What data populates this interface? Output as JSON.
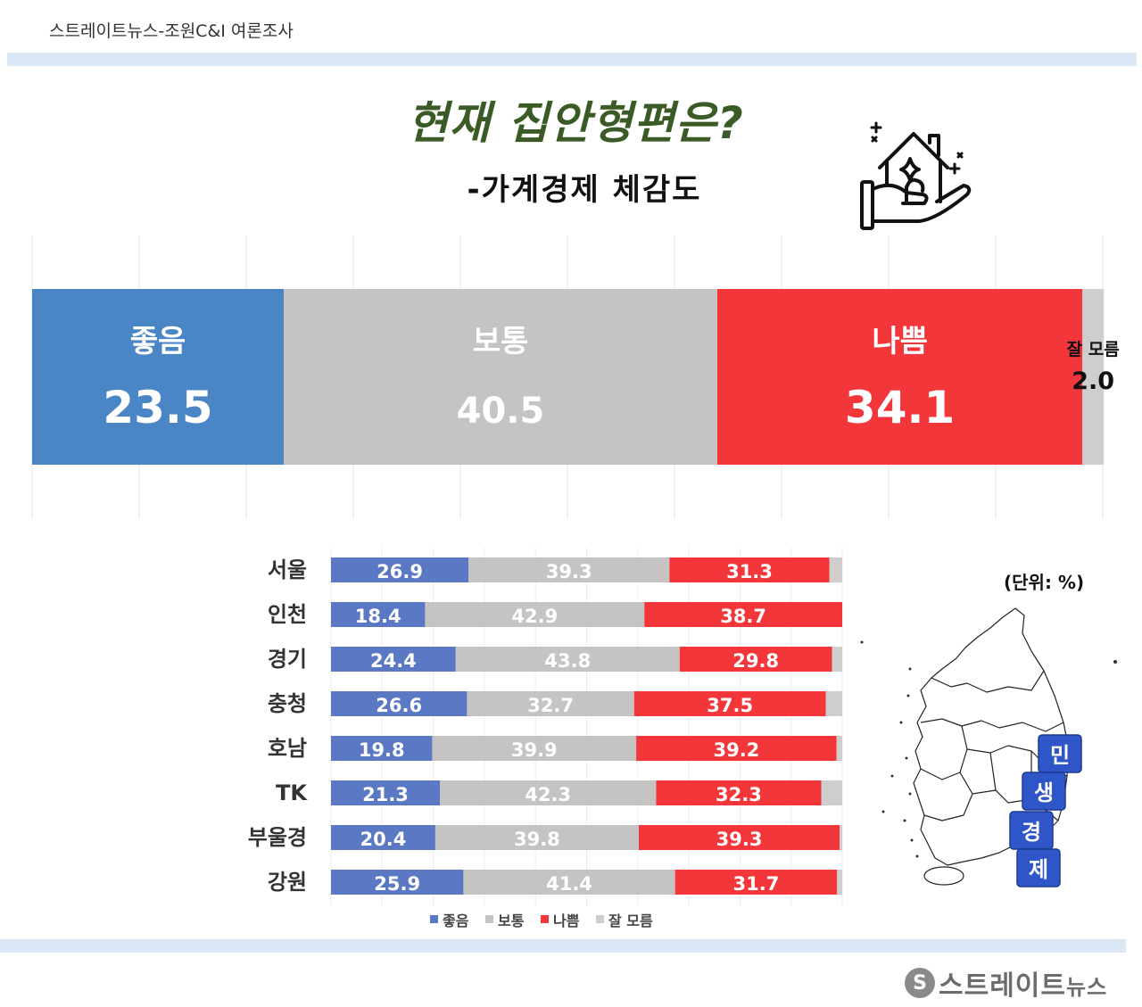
{
  "header": {
    "source": "스트레이트뉴스-조원C&I 여론조사"
  },
  "title": "현재 집안형편은?",
  "subtitle": "-가계경제 체감도",
  "unit_label": "(단위: %)",
  "logo": {
    "mark": "S",
    "main": "스트레이트",
    "small": "뉴스"
  },
  "colors": {
    "good": "#4a86c6",
    "normal": "#c6c3c3",
    "bad": "#f3363a",
    "unknown": "#d0cdcd",
    "region_good": "#5b78c4",
    "title": "#3b5b26",
    "band": "#dae8f5"
  },
  "icons": {
    "house": "house-in-hand-icon",
    "map": "korea-map-icon"
  },
  "map_blocks": [
    "민",
    "생",
    "경",
    "제"
  ],
  "chart_data": [
    {
      "type": "bar",
      "orientation": "horizontal",
      "stacked": true,
      "title": "현재 집안형편은?",
      "subtitle": "-가계경제 체감도",
      "categories": [
        "좋음",
        "보통",
        "나쁨",
        "잘 모름"
      ],
      "values": [
        23.5,
        40.5,
        34.1,
        2.0
      ],
      "colors": [
        "#4a86c6",
        "#c6c3c3",
        "#f3363a",
        "#d0cdcd"
      ],
      "xlim": [
        0,
        100
      ],
      "grid": true
    },
    {
      "type": "bar",
      "orientation": "horizontal",
      "stacked": true,
      "categories": [
        "서울",
        "인천",
        "경기",
        "충청",
        "호남",
        "TK",
        "부울경",
        "강원"
      ],
      "series": [
        {
          "name": "좋음",
          "values": [
            26.9,
            18.4,
            24.4,
            26.6,
            19.8,
            21.3,
            20.4,
            25.9
          ]
        },
        {
          "name": "보통",
          "values": [
            39.3,
            42.9,
            43.8,
            32.7,
            39.9,
            42.3,
            39.8,
            41.4
          ]
        },
        {
          "name": "나쁨",
          "values": [
            31.3,
            38.7,
            29.8,
            37.5,
            39.2,
            32.3,
            39.3,
            31.7
          ]
        },
        {
          "name": "잘 모름",
          "values": [
            2.5,
            0.0,
            2.0,
            3.2,
            1.1,
            4.1,
            0.5,
            1.0
          ]
        }
      ],
      "colors": [
        "#5b78c4",
        "#c6c3c3",
        "#f3363a",
        "#d0cdcd"
      ],
      "xlim": [
        0,
        100
      ],
      "legend": "bottom",
      "grid": true,
      "unit": "(단위: %)"
    }
  ]
}
